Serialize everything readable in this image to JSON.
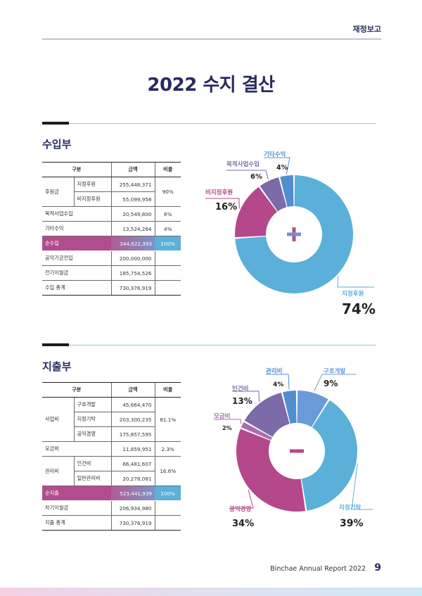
{
  "header": {
    "label": "재정보고"
  },
  "title": "2022 수지 결산",
  "income": {
    "section_title": "수입부",
    "headers": [
      "구분",
      "금액",
      "비율"
    ],
    "group_label": "후원금",
    "group_rows": [
      {
        "label": "지정후원",
        "amount": "255,448,371"
      },
      {
        "label": "비지정후원",
        "amount": "55,099,958"
      }
    ],
    "group_ratio": "90%",
    "rows": [
      {
        "label": "목적사업수입",
        "amount": "20,549,800",
        "ratio": "6%"
      },
      {
        "label": "기타수익",
        "amount": "13,524,264",
        "ratio": "4%"
      }
    ],
    "net": {
      "label": "순수입",
      "amount": "344,622,393",
      "ratio": "100%"
    },
    "after": [
      {
        "label": "공익기금전입",
        "amount": "200,000,000"
      },
      {
        "label": "전기이월금",
        "amount": "185,754,526"
      },
      {
        "label": "수입 총계",
        "amount": "730,376,919"
      }
    ]
  },
  "expense": {
    "section_title": "지출부",
    "headers": [
      "구분",
      "금액",
      "비율"
    ],
    "biz": {
      "label": "사업비",
      "ratio": "81.1%",
      "rows": [
        {
          "label": "구호개발",
          "amount": "45,664,470"
        },
        {
          "label": "지정기탁",
          "amount": "203,300,235"
        },
        {
          "label": "공익경영",
          "amount": "175,857,595"
        }
      ]
    },
    "fund": {
      "label": "모금비",
      "amount": "11,859,951",
      "ratio": "2.3%"
    },
    "admin": {
      "label": "관리비",
      "ratio": "16.6%",
      "rows": [
        {
          "label": "인건비",
          "amount": "66,481,607"
        },
        {
          "label": "일반관리비",
          "amount": "20,278,081"
        }
      ]
    },
    "net": {
      "label": "순지출",
      "amount": "523,441,939",
      "ratio": "100%"
    },
    "after": [
      {
        "label": "차기이월금",
        "amount": "206,934,980"
      },
      {
        "label": "지출 총계",
        "amount": "730,376,919"
      }
    ]
  },
  "chart_data": [
    {
      "type": "pie",
      "categories": [
        "지정후원",
        "비지정후원",
        "목적사업수입",
        "기타수익"
      ],
      "values": [
        74,
        16,
        6,
        4
      ],
      "labels": [
        "74%",
        "16%",
        "6%",
        "4%"
      ],
      "colors": [
        "#5ab0d8",
        "#b4488a",
        "#7d6aa8",
        "#4f8fd0"
      ],
      "center_symbol": "+"
    },
    {
      "type": "pie",
      "categories": [
        "구호개발",
        "지정기탁",
        "공익경영",
        "모금비",
        "인건비",
        "관리비"
      ],
      "values": [
        9,
        39,
        34,
        2,
        13,
        4
      ],
      "labels": [
        "9%",
        "39%",
        "34%",
        "2%",
        "13%",
        "4%"
      ],
      "colors": [
        "#6a9bd8",
        "#5ab0d8",
        "#b4488a",
        "#a96cae",
        "#7d6aa8",
        "#4f8fd0"
      ],
      "center_symbol": "−"
    }
  ],
  "footer": {
    "report": "Binchae Annual Report 2022",
    "page": "9"
  }
}
